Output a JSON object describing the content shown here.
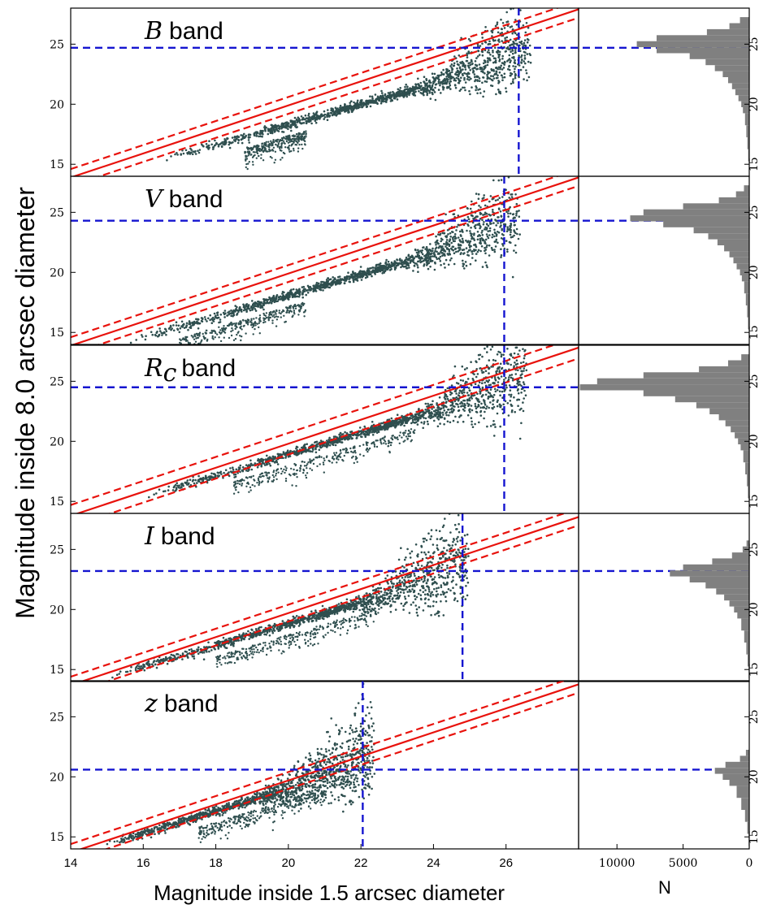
{
  "chart_data": {
    "type": "scatter",
    "xlabel": "Magnitude inside 1.5 arcsec diameter",
    "ylabel": "Magnitude inside 8.0 arcsec diameter",
    "hist_xlabel": "N",
    "xlim": [
      14,
      28
    ],
    "ylim": [
      14,
      28
    ],
    "xticks": [
      14,
      16,
      18,
      20,
      22,
      24,
      26
    ],
    "yticks": [
      15,
      20,
      25
    ],
    "hist_xlim": [
      12900,
      0
    ],
    "hist_xticks": [
      10000,
      5000,
      0
    ],
    "colors": {
      "points": "#2f4f4f",
      "fit_line": "#e8120c",
      "limit_line": "#1515d0",
      "histogram": "#808080",
      "frame": "#000000"
    },
    "panels": [
      {
        "band_symbol": "B",
        "band_word": "band",
        "x_limit": 26.35,
        "y_limit": 24.7,
        "fit_offset": 0.1,
        "band_halfwidth": 0.7,
        "scatter": {
          "x_start": 16.5,
          "x_end": 26.6,
          "y_start": 15.3,
          "slope": 0.85,
          "faint_spread": 2.5,
          "secondary": [
            18.8,
            20.5
          ]
        },
        "histogram": [
          {
            "y": 14.5,
            "n": 20
          },
          {
            "y": 15.5,
            "n": 80
          },
          {
            "y": 16.5,
            "n": 140
          },
          {
            "y": 17.5,
            "n": 220
          },
          {
            "y": 18.5,
            "n": 320
          },
          {
            "y": 19.5,
            "n": 480
          },
          {
            "y": 20,
            "n": 600
          },
          {
            "y": 20.5,
            "n": 820
          },
          {
            "y": 21,
            "n": 1050
          },
          {
            "y": 21.5,
            "n": 1300
          },
          {
            "y": 22,
            "n": 1600
          },
          {
            "y": 22.5,
            "n": 2000
          },
          {
            "y": 23,
            "n": 2600
          },
          {
            "y": 23.5,
            "n": 3300
          },
          {
            "y": 24,
            "n": 4500
          },
          {
            "y": 24.5,
            "n": 7000
          },
          {
            "y": 25,
            "n": 8500
          },
          {
            "y": 25.5,
            "n": 7000
          },
          {
            "y": 26,
            "n": 3200
          },
          {
            "y": 26.5,
            "n": 1500
          },
          {
            "y": 27,
            "n": 700
          }
        ]
      },
      {
        "band_symbol": "V",
        "band_word": "band",
        "x_limit": 25.95,
        "y_limit": 24.3,
        "fit_offset": 0.1,
        "band_halfwidth": 0.7,
        "scatter": {
          "x_start": 15.5,
          "x_end": 26.3,
          "y_start": 14.1,
          "slope": 0.88,
          "faint_spread": 2.6,
          "secondary": [
            17.0,
            20.5
          ]
        },
        "histogram": [
          {
            "y": 14.5,
            "n": 30
          },
          {
            "y": 15.5,
            "n": 90
          },
          {
            "y": 16.5,
            "n": 160
          },
          {
            "y": 17.5,
            "n": 260
          },
          {
            "y": 18.5,
            "n": 380
          },
          {
            "y": 19.5,
            "n": 560
          },
          {
            "y": 20,
            "n": 700
          },
          {
            "y": 20.5,
            "n": 950
          },
          {
            "y": 21,
            "n": 1200
          },
          {
            "y": 21.5,
            "n": 1500
          },
          {
            "y": 22,
            "n": 1900
          },
          {
            "y": 22.5,
            "n": 2400
          },
          {
            "y": 23,
            "n": 3100
          },
          {
            "y": 23.5,
            "n": 4200
          },
          {
            "y": 24,
            "n": 6500
          },
          {
            "y": 24.5,
            "n": 9000
          },
          {
            "y": 25,
            "n": 8000
          },
          {
            "y": 25.5,
            "n": 5000
          },
          {
            "y": 26,
            "n": 2300
          },
          {
            "y": 26.5,
            "n": 1000
          },
          {
            "y": 27,
            "n": 400
          }
        ]
      },
      {
        "band_symbol": "Rc",
        "band_word": "band",
        "x_limit": 25.95,
        "y_limit": 24.5,
        "fit_offset": 0.2,
        "band_halfwidth": 0.9,
        "scatter": {
          "x_start": 16.0,
          "x_end": 26.5,
          "y_start": 15.3,
          "slope": 0.9,
          "faint_spread": 3.0,
          "secondary": [
            18.5,
            23.5
          ]
        },
        "histogram": [
          {
            "y": 14.5,
            "n": 30
          },
          {
            "y": 15.5,
            "n": 100
          },
          {
            "y": 16.5,
            "n": 180
          },
          {
            "y": 17.5,
            "n": 300
          },
          {
            "y": 18.5,
            "n": 450
          },
          {
            "y": 19.5,
            "n": 650
          },
          {
            "y": 20,
            "n": 850
          },
          {
            "y": 20.5,
            "n": 1100
          },
          {
            "y": 21,
            "n": 1400
          },
          {
            "y": 21.5,
            "n": 1800
          },
          {
            "y": 22,
            "n": 2300
          },
          {
            "y": 22.5,
            "n": 3000
          },
          {
            "y": 23,
            "n": 4000
          },
          {
            "y": 23.5,
            "n": 5600
          },
          {
            "y": 24,
            "n": 8000
          },
          {
            "y": 24.5,
            "n": 12800
          },
          {
            "y": 25,
            "n": 11500
          },
          {
            "y": 25.5,
            "n": 8000
          },
          {
            "y": 26,
            "n": 3800
          },
          {
            "y": 26.5,
            "n": 1600
          },
          {
            "y": 27,
            "n": 600
          }
        ]
      },
      {
        "band_symbol": "I",
        "band_word": "band",
        "x_limit": 24.8,
        "y_limit": 23.2,
        "fit_offset": 0.3,
        "band_halfwidth": 0.7,
        "scatter": {
          "x_start": 15.0,
          "x_end": 24.9,
          "y_start": 14.3,
          "slope": 0.9,
          "faint_spread": 3.2,
          "secondary": [
            18.0,
            22.5
          ]
        },
        "histogram": [
          {
            "y": 14.5,
            "n": 40
          },
          {
            "y": 15.5,
            "n": 120
          },
          {
            "y": 16.5,
            "n": 220
          },
          {
            "y": 17.5,
            "n": 380
          },
          {
            "y": 18.5,
            "n": 600
          },
          {
            "y": 19.5,
            "n": 900
          },
          {
            "y": 20,
            "n": 1150
          },
          {
            "y": 20.5,
            "n": 1500
          },
          {
            "y": 21,
            "n": 1900
          },
          {
            "y": 21.5,
            "n": 2500
          },
          {
            "y": 22,
            "n": 3300
          },
          {
            "y": 22.5,
            "n": 4500
          },
          {
            "y": 23,
            "n": 6000
          },
          {
            "y": 23.5,
            "n": 5000
          },
          {
            "y": 24,
            "n": 2800
          },
          {
            "y": 24.5,
            "n": 1300
          },
          {
            "y": 25,
            "n": 500
          },
          {
            "y": 25.5,
            "n": 200
          }
        ]
      },
      {
        "band_symbol": "z",
        "band_word": "band",
        "x_limit": 22.05,
        "y_limit": 20.6,
        "fit_offset": 0.3,
        "band_halfwidth": 0.7,
        "scatter": {
          "x_start": 14.8,
          "x_end": 22.3,
          "y_start": 14.2,
          "slope": 0.92,
          "faint_spread": 2.8,
          "secondary": [
            17.5,
            21.0
          ]
        },
        "histogram": [
          {
            "y": 14.5,
            "n": 40
          },
          {
            "y": 15.5,
            "n": 150
          },
          {
            "y": 16.5,
            "n": 320
          },
          {
            "y": 17.5,
            "n": 600
          },
          {
            "y": 18.5,
            "n": 950
          },
          {
            "y": 19.5,
            "n": 1500
          },
          {
            "y": 20,
            "n": 2000
          },
          {
            "y": 20.5,
            "n": 2600
          },
          {
            "y": 21,
            "n": 1800
          },
          {
            "y": 21.5,
            "n": 700
          },
          {
            "y": 22,
            "n": 250
          }
        ]
      }
    ]
  }
}
